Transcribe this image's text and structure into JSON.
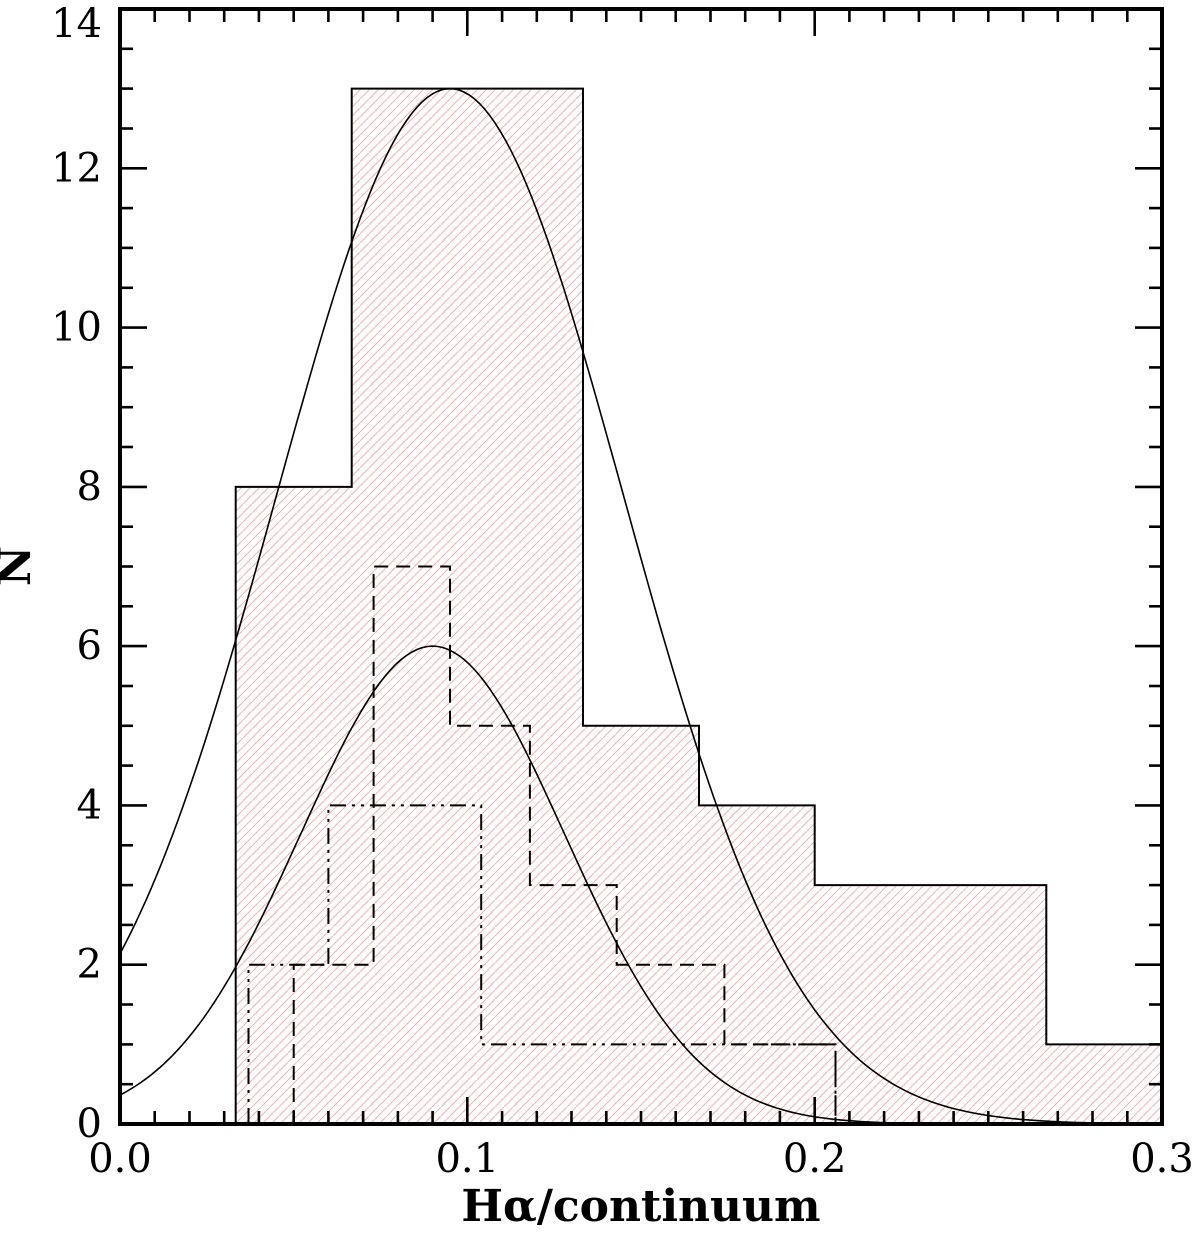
{
  "chart_data": {
    "type": "histogram",
    "title": "",
    "xlabel": "Hα/continuum",
    "ylabel": "N",
    "xlim": [
      0.0,
      0.3
    ],
    "ylim": [
      0,
      14
    ],
    "x_major_ticks": [
      0.0,
      0.1,
      0.2,
      0.3
    ],
    "x_tick_labels": [
      "0.0",
      "0.1",
      "0.2",
      "0.3"
    ],
    "x_minor_step": 0.01,
    "y_major_ticks": [
      0,
      2,
      4,
      6,
      8,
      10,
      12,
      14
    ],
    "y_tick_labels": [
      "0",
      "2",
      "4",
      "6",
      "8",
      "10",
      "12",
      "14"
    ],
    "y_minor_step": 0.5,
    "grid": false,
    "legend": "none",
    "series": [
      {
        "name": "solid-hatched-histogram",
        "kind": "histogram",
        "line_style": "solid",
        "fill": "hatch",
        "edges": [
          0.0333,
          0.0667,
          0.1,
          0.1333,
          0.1667,
          0.2,
          0.2333,
          0.2667,
          0.3
        ],
        "values": [
          8,
          13,
          13,
          5,
          4,
          3,
          3,
          1
        ]
      },
      {
        "name": "dashed-histogram",
        "kind": "histogram",
        "line_style": "dashed",
        "fill": "none",
        "edges": [
          0.05,
          0.073,
          0.095,
          0.118,
          0.143,
          0.174,
          0.206
        ],
        "values": [
          2,
          7,
          5,
          3,
          2,
          1
        ]
      },
      {
        "name": "dash-dot-histogram",
        "kind": "histogram",
        "line_style": "dashdotdot",
        "fill": "none",
        "edges": [
          0.037,
          0.06,
          0.104,
          0.206
        ],
        "values": [
          2,
          4,
          1
        ]
      },
      {
        "name": "gaussian-curve-large",
        "kind": "gaussian",
        "line_style": "solid",
        "amplitude": 13.0,
        "mean": 0.095,
        "sigma": 0.05
      },
      {
        "name": "gaussian-curve-small",
        "kind": "gaussian",
        "line_style": "solid",
        "amplitude": 6.0,
        "mean": 0.09,
        "sigma": 0.038
      }
    ],
    "colors": {
      "frame": "#000000",
      "line": "#000000",
      "hatch": "#f2b4b4",
      "background": "#ffffff"
    }
  }
}
